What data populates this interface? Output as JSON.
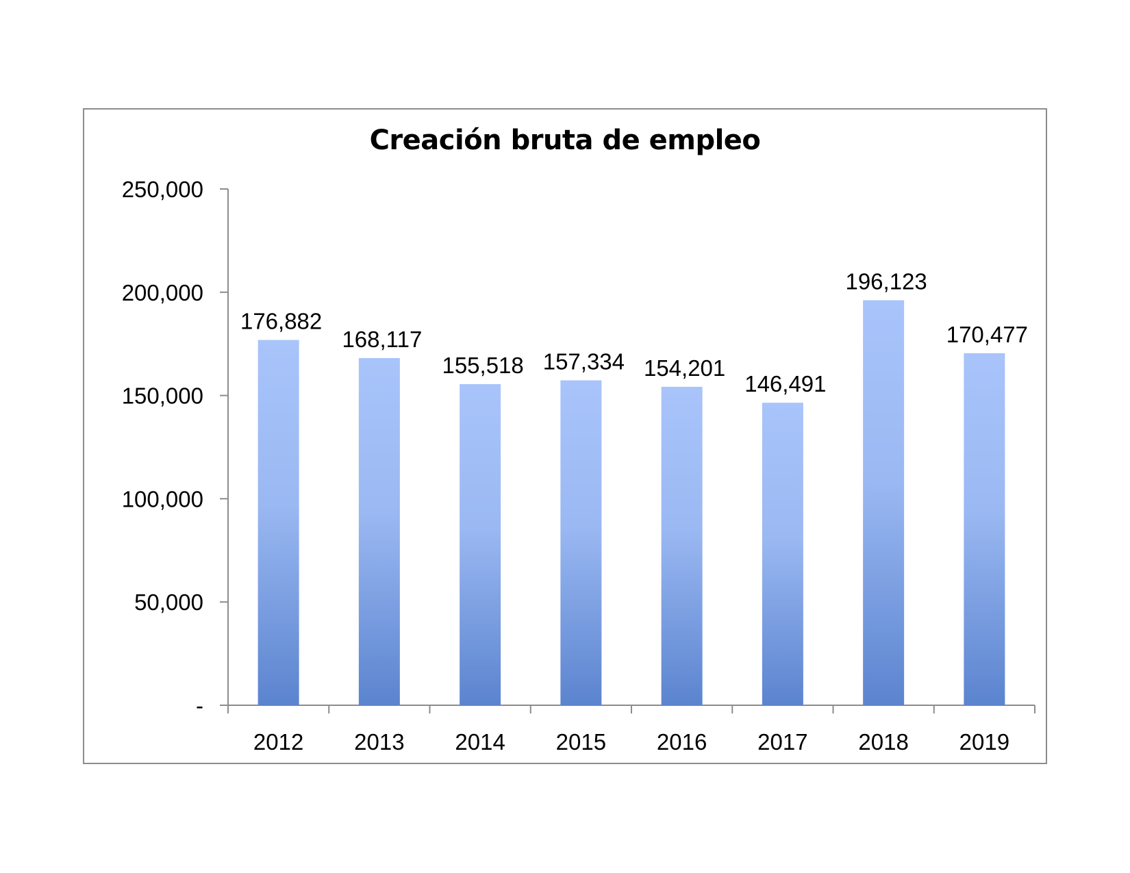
{
  "chart_data": {
    "type": "bar",
    "title": "Creación bruta de empleo",
    "xlabel": "",
    "ylabel": "",
    "categories": [
      "2012",
      "2013",
      "2014",
      "2015",
      "2016",
      "2017",
      "2018",
      "2019"
    ],
    "values": [
      176882,
      168117,
      155518,
      157334,
      154201,
      146491,
      196123,
      170477
    ],
    "value_labels": [
      "176,882",
      "168,117",
      "155,518",
      "157,334",
      "154,201",
      "146,491",
      "196,123",
      "170,477"
    ],
    "ylim": [
      0,
      250000
    ],
    "yticks": [
      0,
      50000,
      100000,
      150000,
      200000,
      250000
    ],
    "ytick_labels": [
      "-",
      "50,000",
      "100,000",
      "150,000",
      "200,000",
      "250,000"
    ],
    "grid": false,
    "legend": "none",
    "bar_color_top": "#a9c4fb",
    "bar_color_bottom": "#5b84cf",
    "axis_color": "#8c8c8c"
  }
}
